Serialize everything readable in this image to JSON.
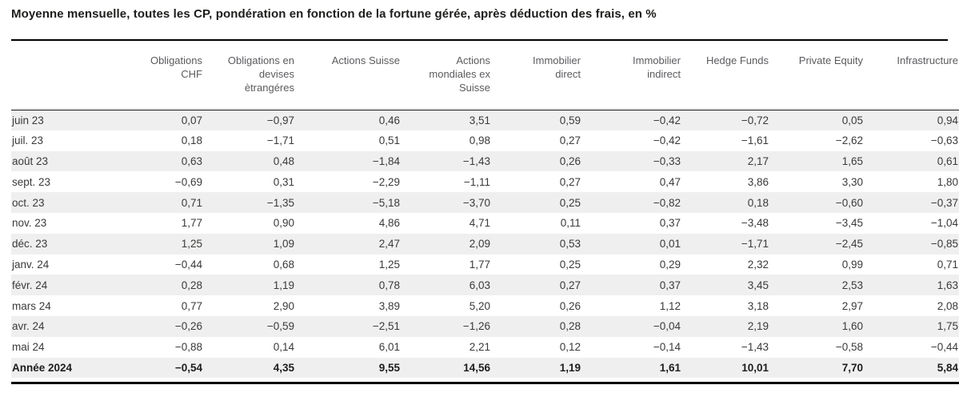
{
  "title": "Moyenne mensuelle, toutes les CP, pondération en fonction de la fortune gérée, après déduction des frais, en %",
  "table": {
    "columns": [
      "Obligations\nCHF",
      "Obligations en\ndevises\nètrangéres",
      "Actions Suisse",
      "Actions\nmondiales ex\nSuisse",
      "Immobilier\ndirect",
      "Immobilier\nindirect",
      "Hedge Funds",
      "Private Equity",
      "Infrastructure"
    ],
    "rows": [
      {
        "label": "juin 23",
        "values": [
          "0,07",
          "−0,97",
          "0,46",
          "3,51",
          "0,59",
          "−0,42",
          "−0,72",
          "0,05",
          "0,94"
        ]
      },
      {
        "label": "juil. 23",
        "values": [
          "0,18",
          "−1,71",
          "0,51",
          "0,98",
          "0,27",
          "−0,42",
          "−1,61",
          "−2,62",
          "−0,63"
        ]
      },
      {
        "label": "août 23",
        "values": [
          "0,63",
          "0,48",
          "−1,84",
          "−1,43",
          "0,26",
          "−0,33",
          "2,17",
          "1,65",
          "0,61"
        ]
      },
      {
        "label": "sept. 23",
        "values": [
          "−0,69",
          "0,31",
          "−2,29",
          "−1,11",
          "0,27",
          "0,47",
          "3,86",
          "3,30",
          "1,80"
        ]
      },
      {
        "label": "oct. 23",
        "values": [
          "0,71",
          "−1,35",
          "−5,18",
          "−3,70",
          "0,25",
          "−0,82",
          "0,18",
          "−0,60",
          "−0,37"
        ]
      },
      {
        "label": "nov. 23",
        "values": [
          "1,77",
          "0,90",
          "4,86",
          "4,71",
          "0,11",
          "0,37",
          "−3,48",
          "−3,45",
          "−1,04"
        ]
      },
      {
        "label": "déc. 23",
        "values": [
          "1,25",
          "1,09",
          "2,47",
          "2,09",
          "0,53",
          "0,01",
          "−1,71",
          "−2,45",
          "−0,85"
        ]
      },
      {
        "label": "janv. 24",
        "values": [
          "−0,44",
          "0,68",
          "1,25",
          "1,77",
          "0,25",
          "0,29",
          "2,32",
          "0,99",
          "0,71"
        ]
      },
      {
        "label": "févr. 24",
        "values": [
          "0,28",
          "1,19",
          "0,78",
          "6,03",
          "0,27",
          "0,37",
          "3,45",
          "2,53",
          "1,63"
        ]
      },
      {
        "label": "mars 24",
        "values": [
          "0,77",
          "2,90",
          "3,89",
          "5,20",
          "0,26",
          "1,12",
          "3,18",
          "2,97",
          "2,08"
        ]
      },
      {
        "label": "avr. 24",
        "values": [
          "−0,26",
          "−0,59",
          "−2,51",
          "−1,26",
          "0,28",
          "−0,04",
          "2,19",
          "1,60",
          "1,75"
        ]
      },
      {
        "label": "mai 24",
        "values": [
          "−0,88",
          "0,14",
          "6,01",
          "2,21",
          "0,12",
          "−0,14",
          "−1,43",
          "−0,58",
          "−0,44"
        ]
      },
      {
        "label": "Année 2024",
        "values": [
          "−0,54",
          "4,35",
          "9,55",
          "14,56",
          "1,19",
          "1,61",
          "10,01",
          "7,70",
          "5,84"
        ],
        "is_total": true
      }
    ]
  }
}
